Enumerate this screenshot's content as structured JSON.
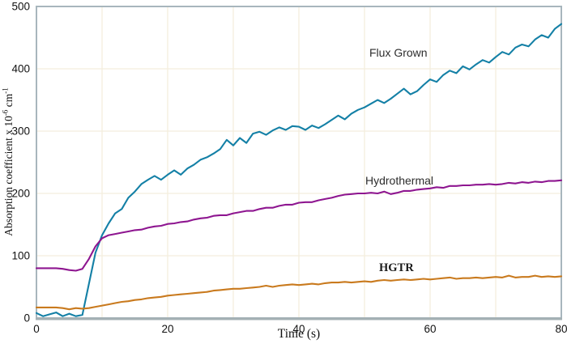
{
  "chart_data": {
    "type": "line",
    "title": "",
    "xlabel": "Time (s)",
    "ylabel": "Absorption coefficient x 10^-6 cm^-1",
    "ylabel_parts": {
      "main": "Absorption coefficient x 10",
      "sup1": "-6",
      "mid": " cm",
      "sup2": "-1"
    },
    "xlim": [
      0,
      80
    ],
    "ylim": [
      0,
      500
    ],
    "xticks": [
      0,
      20,
      40,
      60,
      80
    ],
    "yticks": [
      0,
      100,
      200,
      300,
      400,
      500
    ],
    "grid": true,
    "grid_x_step": 10,
    "grid_y_step": 100,
    "legend_position": "inline-labels",
    "palette": {
      "grid": "#f3eedd",
      "axis": "#a8b6bd",
      "axis_bottom": "#a4b0b4",
      "background": "#ffffff"
    },
    "x": [
      0,
      1,
      2,
      3,
      4,
      5,
      6,
      7,
      8,
      9,
      10,
      11,
      12,
      13,
      14,
      15,
      16,
      17,
      18,
      19,
      20,
      21,
      22,
      23,
      24,
      25,
      26,
      27,
      28,
      29,
      30,
      31,
      32,
      33,
      34,
      35,
      36,
      37,
      38,
      39,
      40,
      41,
      42,
      43,
      44,
      45,
      46,
      47,
      48,
      49,
      50,
      51,
      52,
      53,
      54,
      55,
      56,
      57,
      58,
      59,
      60,
      61,
      62,
      63,
      64,
      65,
      66,
      67,
      68,
      69,
      70,
      71,
      72,
      73,
      74,
      75,
      76,
      77,
      78,
      79,
      80
    ],
    "series": [
      {
        "name": "Flux Grown",
        "color": "#1480a6",
        "values": [
          8,
          3,
          6,
          9,
          3,
          7,
          3,
          5,
          55,
          105,
          133,
          152,
          168,
          175,
          193,
          203,
          215,
          222,
          228,
          222,
          230,
          237,
          230,
          240,
          246,
          254,
          258,
          264,
          271,
          286,
          277,
          289,
          281,
          296,
          299,
          294,
          301,
          306,
          302,
          308,
          307,
          302,
          309,
          305,
          311,
          318,
          325,
          319,
          328,
          334,
          338,
          344,
          350,
          345,
          352,
          360,
          368,
          359,
          364,
          374,
          383,
          379,
          390,
          397,
          393,
          404,
          399,
          407,
          414,
          410,
          419,
          427,
          423,
          434,
          439,
          436,
          447,
          454,
          450,
          464,
          472
        ]
      },
      {
        "name": "Hydrothermal",
        "color": "#8e1690",
        "values": [
          80,
          80,
          80,
          80,
          79,
          77,
          76,
          79,
          95,
          115,
          128,
          133,
          135,
          137,
          139,
          141,
          142,
          145,
          147,
          148,
          151,
          152,
          154,
          155,
          158,
          160,
          161,
          164,
          165,
          165,
          168,
          170,
          172,
          172,
          175,
          177,
          177,
          180,
          182,
          182,
          185,
          186,
          186,
          189,
          191,
          193,
          196,
          198,
          199,
          200,
          200,
          201,
          200,
          203,
          199,
          201,
          204,
          204,
          206,
          207,
          208,
          210,
          209,
          212,
          212,
          213,
          213,
          214,
          214,
          215,
          214,
          215,
          217,
          216,
          218,
          217,
          219,
          218,
          220,
          220,
          221
        ]
      },
      {
        "name": "HGTR",
        "color": "#c97a1e",
        "values": [
          17,
          17,
          17,
          17,
          16,
          14,
          16,
          15,
          16,
          18,
          20,
          22,
          24,
          26,
          27,
          29,
          30,
          32,
          33,
          34,
          36,
          37,
          38,
          39,
          40,
          41,
          42,
          44,
          45,
          46,
          47,
          47,
          48,
          49,
          50,
          52,
          50,
          52,
          53,
          54,
          53,
          54,
          55,
          54,
          56,
          57,
          57,
          58,
          57,
          58,
          59,
          58,
          60,
          61,
          60,
          61,
          62,
          61,
          62,
          63,
          62,
          63,
          64,
          65,
          63,
          64,
          64,
          65,
          64,
          65,
          66,
          65,
          68,
          65,
          66,
          66,
          68,
          66,
          67,
          66,
          67
        ]
      }
    ]
  }
}
